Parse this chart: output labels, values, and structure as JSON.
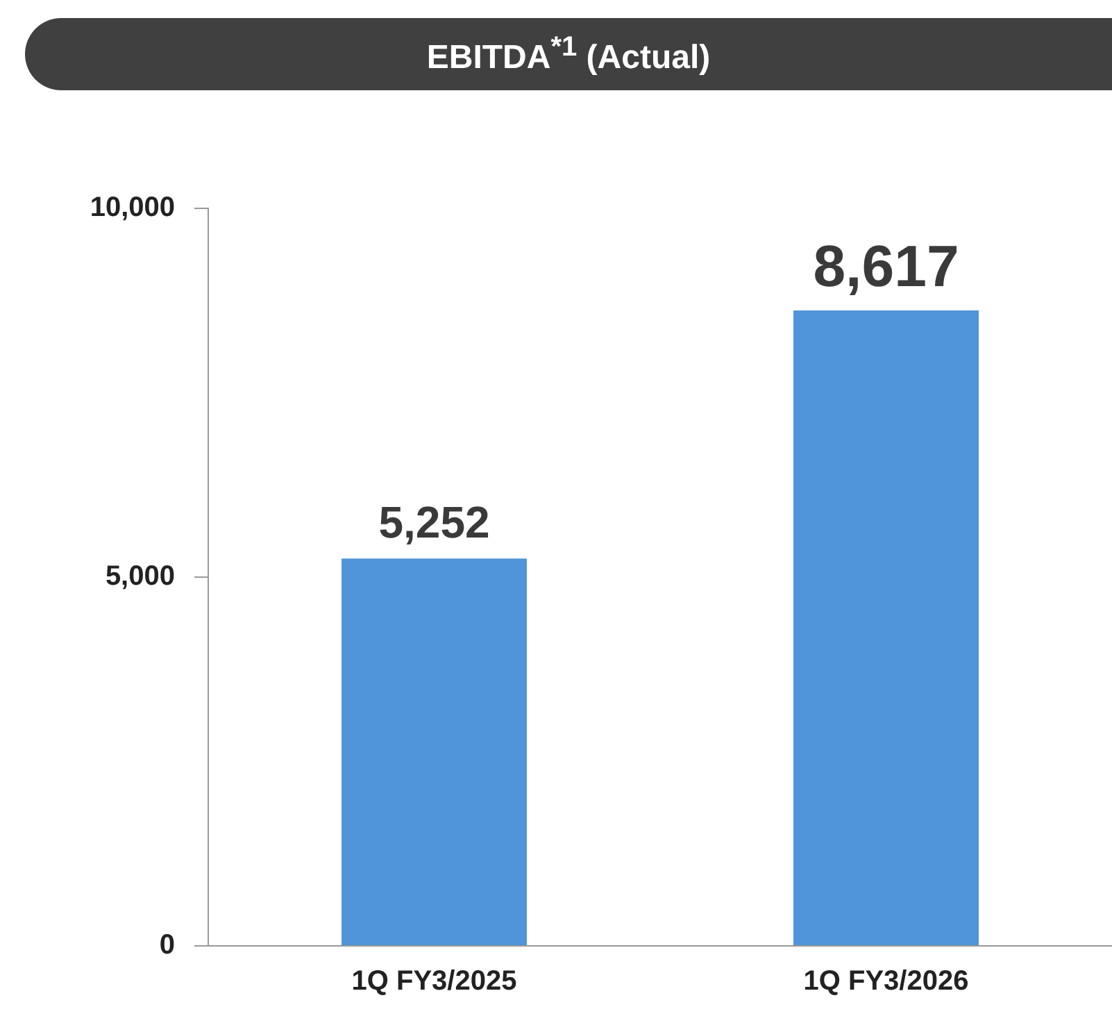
{
  "chart_data": {
    "type": "bar",
    "title": "EBITDA$^{*1}$ (Actual)",
    "categories": [
      "1Q FY3/2025",
      "1Q FY3/2026"
    ],
    "values": [
      5252,
      8617
    ],
    "color": "#5094d9",
    "ylim": [
      0,
      10000
    ],
    "yticks": [
      {
        "value": 0,
        "label": "0"
      },
      {
        "value": 5000,
        "label": "5,000"
      },
      {
        "value": 10000,
        "label": "10,000"
      }
    ],
    "grid": false,
    "legend": false,
    "value_labels": [
      "5,252",
      "8,617"
    ]
  }
}
